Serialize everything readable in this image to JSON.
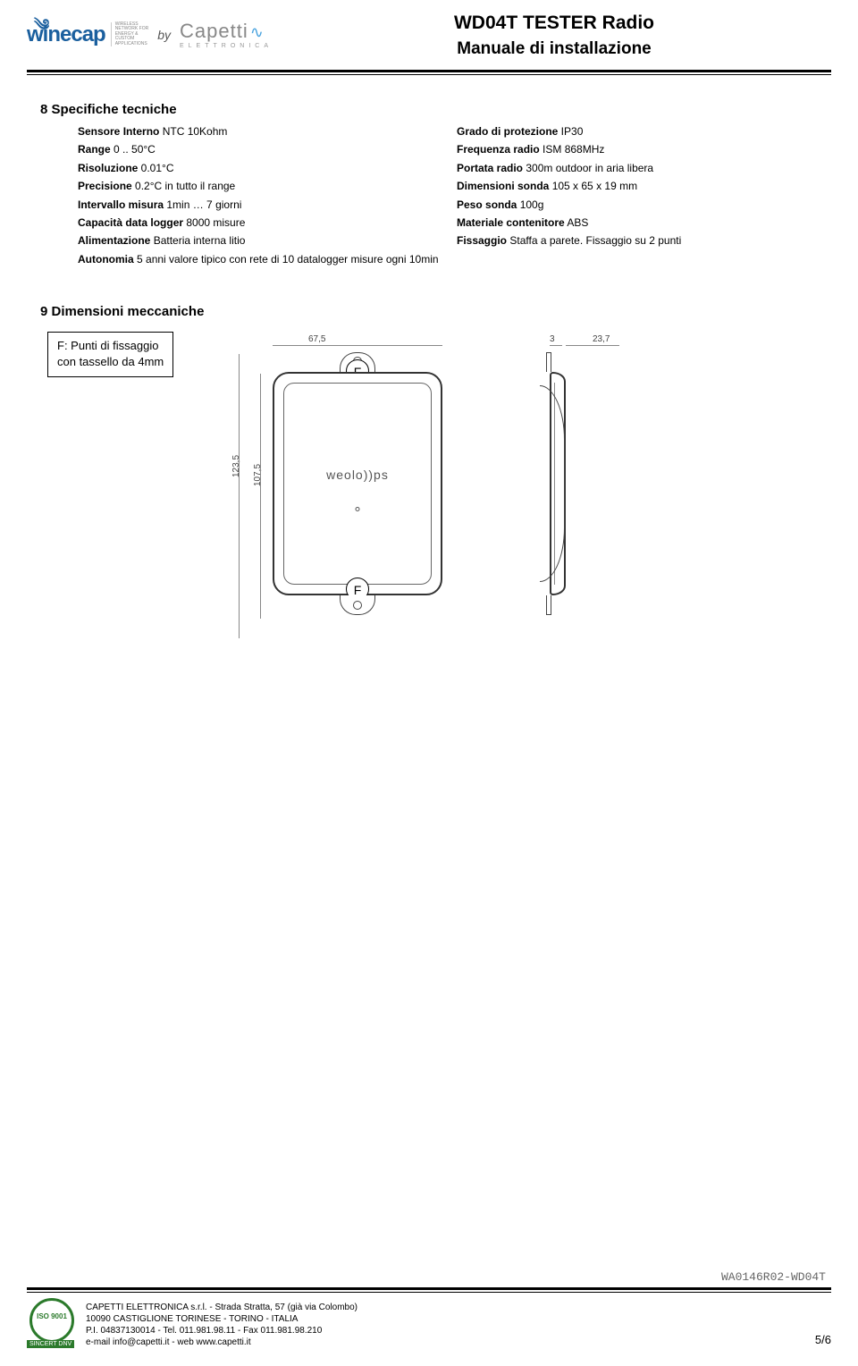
{
  "header": {
    "logo1_text": "winecap",
    "logo1_tag": "WIRELESS\nNETWORK FOR\nENERGY &\nCUSTOM\nAPPLICATIONS",
    "by": "by",
    "logo2_text": "Capetti",
    "logo2_sub": "ELETTRONICA",
    "title_line1": "WD04T TESTER Radio",
    "title_line2": "Manuale di installazione"
  },
  "sec8": {
    "title": "8 Specifiche tecniche",
    "left": [
      {
        "b": "Sensore Interno",
        "v": " NTC 10Kohm"
      },
      {
        "b": "Range",
        "v": " 0 .. 50°C"
      },
      {
        "b": "Risoluzione",
        "v": " 0.01°C"
      },
      {
        "b": "Precisione",
        "v": " 0.2°C in tutto il range"
      },
      {
        "b": "Intervallo misura",
        "v": " 1min … 7 giorni"
      },
      {
        "b": "Capacità data logger",
        "v": " 8000 misure"
      },
      {
        "b": "Alimentazione",
        "v": " Batteria interna litio"
      },
      {
        "b": "Autonomia",
        "v": " 5 anni valore tipico con rete di 10 datalogger misure ogni 10min"
      }
    ],
    "right": [
      {
        "b": "Grado di protezione",
        "v": " IP30"
      },
      {
        "b": "Frequenza radio",
        "v": " ISM 868MHz"
      },
      {
        "b": "Portata radio",
        "v": " 300m outdoor in aria libera"
      },
      {
        "b": "Dimensioni sonda",
        "v": " 105 x 65 x 19 mm"
      },
      {
        "b": "Peso sonda",
        "v": " 100g"
      },
      {
        "b": "Materiale contenitore",
        "v": " ABS"
      },
      {
        "b": "Fissaggio",
        "v": " Staffa a parete. Fissaggio su 2 punti"
      }
    ]
  },
  "sec9": {
    "title": "9 Dimensioni meccaniche",
    "callout_l1": "F: Punti di fissaggio",
    "callout_l2": "con tassello da 4mm",
    "brand": "weolo))ps",
    "f_label": "F",
    "dim_w": "67,5",
    "dim_gap": "3",
    "dim_d": "23,7",
    "dim_h_outer": "123,5",
    "dim_h_inner": "107,5"
  },
  "footer": {
    "docid": "WA0146R02-WD04T",
    "cert_inner": "ISO 9001",
    "cert_bar": "SINCERT DNV",
    "line1": "CAPETTI ELETTRONICA s.r.l.   -   Strada Stratta, 57 (già via Colombo)",
    "line2": "10090 CASTIGLIONE TORINESE  -  TORINO  -   ITALIA",
    "line3": "P.I. 04837130014 - Tel. 011.981.98.11 - Fax 011.981.98.210",
    "line4": "e-mail info@capetti.it  -  web www.capetti.it",
    "page": "5/6"
  }
}
